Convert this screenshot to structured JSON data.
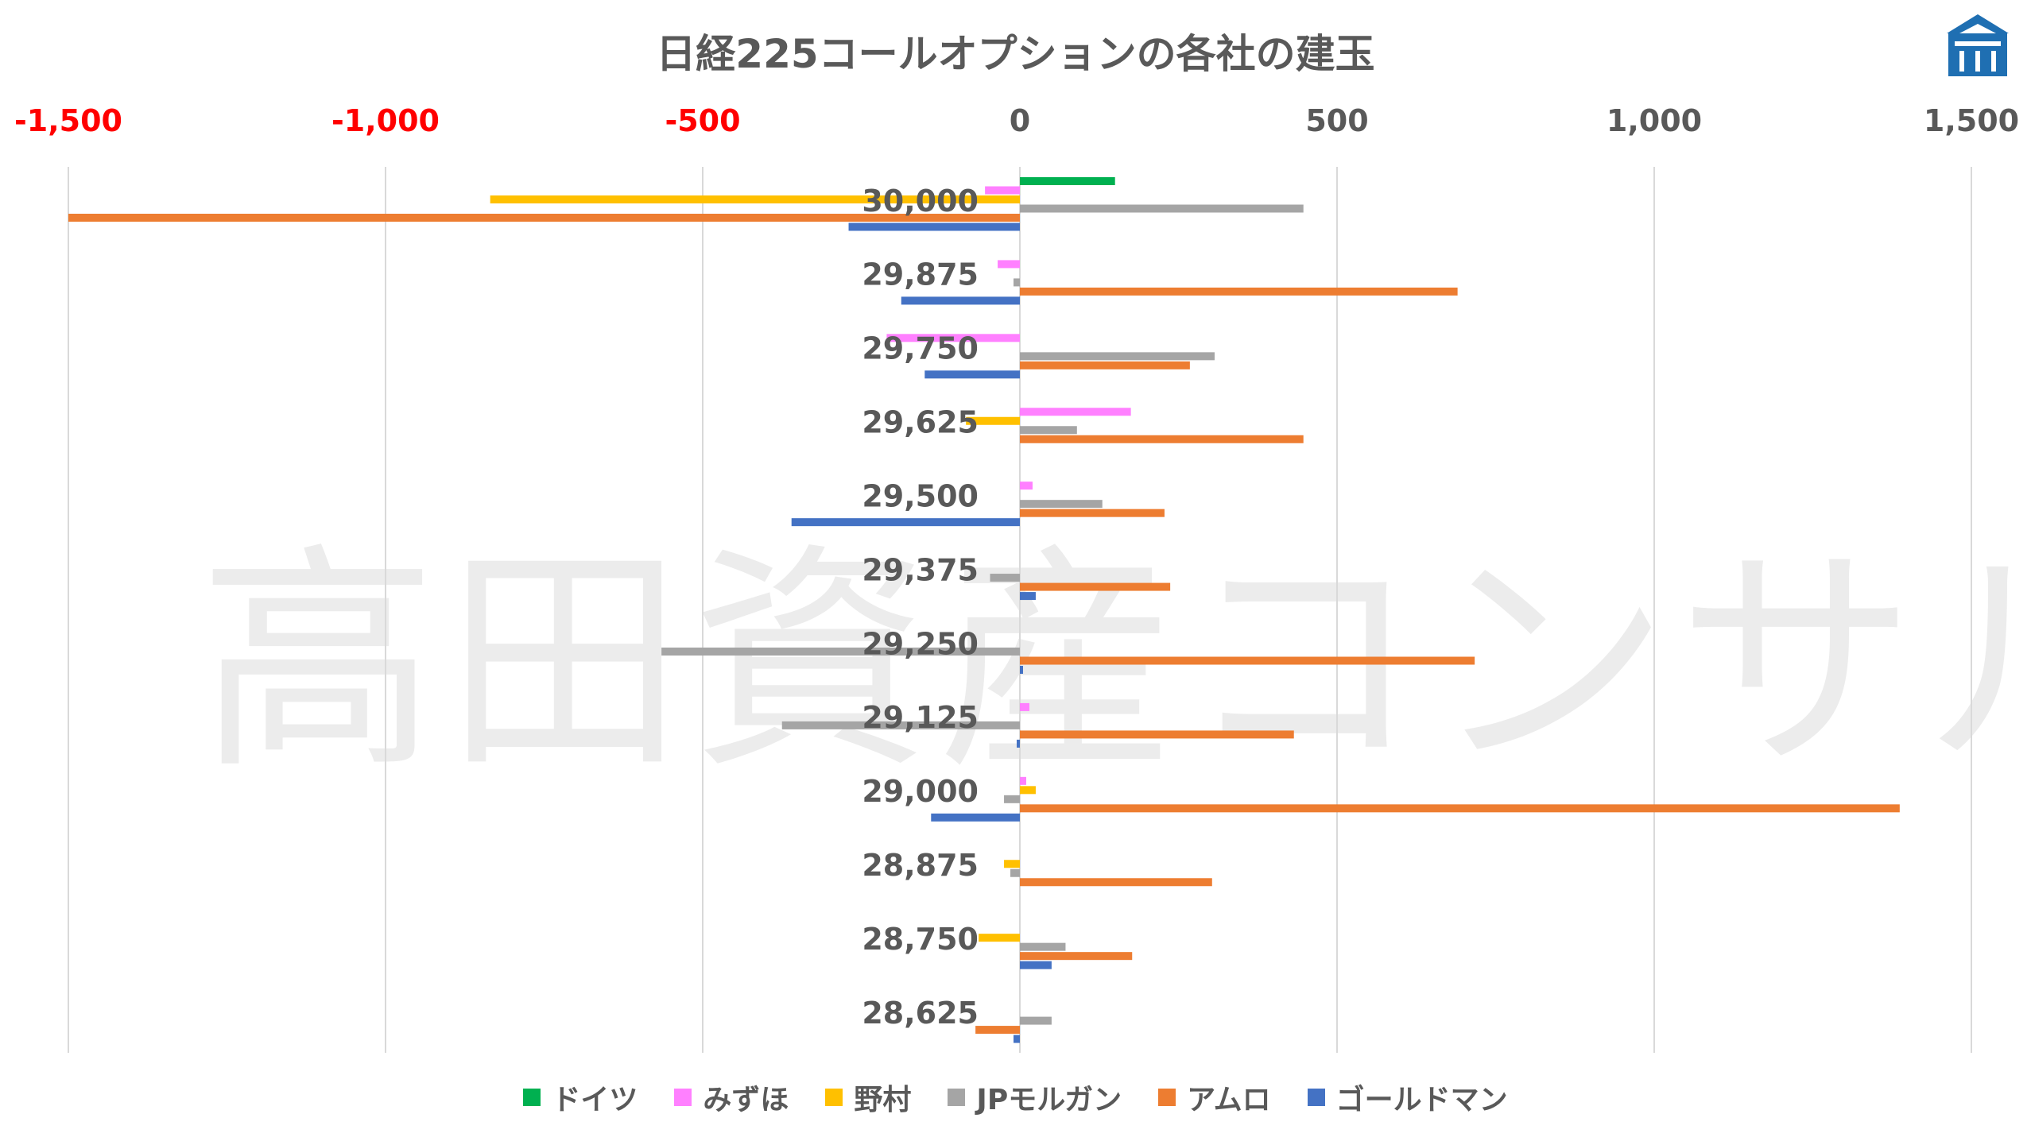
{
  "watermark": "高田資産コンサル",
  "logo": {
    "icon": "building-logo-icon",
    "color": "#1f6fb2"
  },
  "chart_data": {
    "type": "bar",
    "orientation": "horizontal",
    "title": "日経225コールオプションの各社の建玉",
    "xlim": [
      -1500,
      1500
    ],
    "x_ticks": [
      -1500,
      -1000,
      -500,
      0,
      500,
      1000,
      1500
    ],
    "x_tick_labels": [
      "-1,500",
      "-1,000",
      "-500",
      "0",
      "500",
      "1,000",
      "1,500"
    ],
    "negative_tick_color": "#ff0000",
    "positive_tick_color": "#595959",
    "axis_position": "top",
    "grid": true,
    "legend_position": "bottom",
    "categories": [
      "30,000",
      "29,875",
      "29,750",
      "29,625",
      "29,500",
      "29,375",
      "29,250",
      "29,125",
      "29,000",
      "28,875",
      "28,750",
      "28,625"
    ],
    "series": [
      {
        "name": "ドイツ",
        "color": "#00b050",
        "values": [
          150,
          0,
          0,
          0,
          0,
          0,
          0,
          0,
          0,
          0,
          0,
          0
        ]
      },
      {
        "name": "みずほ",
        "color": "#ff80ff",
        "values": [
          -55,
          -35,
          -210,
          175,
          20,
          0,
          0,
          15,
          10,
          0,
          0,
          0
        ]
      },
      {
        "name": "野村",
        "color": "#ffc000",
        "values": [
          -835,
          0,
          0,
          -85,
          0,
          0,
          0,
          0,
          25,
          -25,
          -65,
          0
        ]
      },
      {
        "name": "JPモルガン",
        "color": "#a5a5a5",
        "values": [
          447,
          -10,
          307,
          90,
          130,
          -47,
          -565,
          -375,
          -25,
          -15,
          72,
          50
        ]
      },
      {
        "name": "アムロ",
        "color": "#ed7d31",
        "values": [
          -1500,
          690,
          268,
          447,
          228,
          237,
          717,
          432,
          1387,
          303,
          177,
          -70
        ]
      },
      {
        "name": "ゴールドマン",
        "color": "#4472c4",
        "values": [
          -270,
          -187,
          -150,
          0,
          -360,
          25,
          5,
          -5,
          -140,
          0,
          50,
          -10
        ]
      }
    ]
  }
}
